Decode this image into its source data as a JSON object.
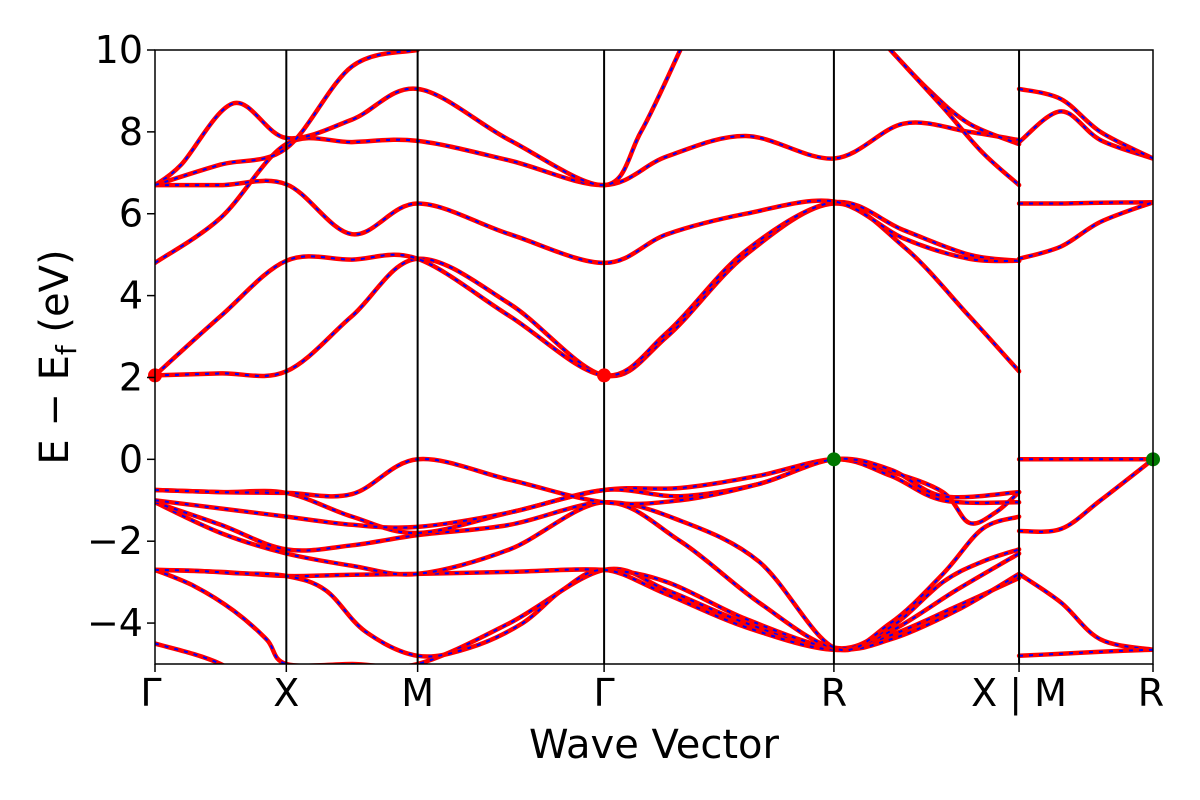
{
  "chart_data": {
    "type": "line",
    "title": "",
    "xlabel": "Wave Vector",
    "ylabel": "E − E",
    "ylabel_subscript": "f",
    "ylabel_unit": " (eV)",
    "ylim": [
      -5,
      10
    ],
    "yticks": [
      10,
      8,
      6,
      4,
      2,
      0,
      -2,
      -4
    ],
    "ytick_labels": [
      "10",
      "8",
      "6",
      "4",
      "2",
      "0",
      "−2",
      "−4"
    ],
    "kpath_positions": [
      0,
      1,
      2,
      3.42,
      5.17,
      6.58,
      7.6
    ],
    "kpath_labels": [
      "Γ",
      "X",
      "M",
      "Γ",
      "R",
      "X | M",
      "R"
    ],
    "colors": {
      "band": "#ff0000",
      "band_dash": "#0000ff",
      "cbm": "#ff0000",
      "vbm": "#007700"
    },
    "markers": [
      {
        "name": "cbm-marker-gamma-left",
        "x": 0,
        "y": 2.05,
        "color": "#ff0000"
      },
      {
        "name": "cbm-marker-gamma",
        "x": 3.42,
        "y": 2.05,
        "color": "#ff0000"
      },
      {
        "name": "vbm-marker-r",
        "x": 5.17,
        "y": 0.0,
        "color": "#007700"
      },
      {
        "name": "vbm-marker-r-end",
        "x": 7.6,
        "y": 0.0,
        "color": "#007700"
      }
    ],
    "bands": [
      {
        "x": [
          0,
          0.5,
          1,
          1.5,
          2,
          2.7,
          3.42
        ],
        "y": [
          -4.5,
          -5.0,
          -6,
          -5.8,
          -5.2,
          -5.5,
          -5.5
        ]
      },
      {
        "x": [
          0,
          0.3,
          0.6,
          0.85,
          1,
          1.5,
          2,
          2.7,
          3.42,
          3.9,
          4.5,
          5.17,
          5.6,
          6.1,
          6.58
        ],
        "y": [
          -2.7,
          -3.1,
          -3.7,
          -4.4,
          -5.0,
          -5.0,
          -5.0,
          -4.0,
          -2.7,
          -3.2,
          -4.0,
          -4.65,
          -4.3,
          -3.6,
          -2.9
        ]
      },
      {
        "x": [
          0,
          0.5,
          1,
          1.5,
          2,
          2.7,
          3.42,
          3.9,
          4.5,
          5.17,
          5.6,
          6.1,
          6.58
        ],
        "y": [
          -2.7,
          -2.75,
          -2.85,
          -2.82,
          -2.8,
          -2.75,
          -2.7,
          -3.0,
          -3.9,
          -4.62,
          -4.4,
          -3.7,
          -2.8
        ]
      },
      {
        "x": [
          0,
          0.3,
          0.6,
          1,
          1.3,
          1.6,
          2,
          2.4,
          2.8,
          3.1,
          3.42,
          3.9,
          4.5,
          5.17,
          5.6,
          6.1,
          6.58
        ],
        "y": [
          -2.7,
          -2.72,
          -2.78,
          -2.85,
          -3.2,
          -4.2,
          -4.8,
          -4.6,
          -4.0,
          -3.2,
          -2.7,
          -3.3,
          -4.1,
          -4.65,
          -4.2,
          -3.2,
          -2.3
        ]
      },
      {
        "x": [
          0,
          0.5,
          1,
          1.5,
          2,
          2.7,
          3.42,
          4.0,
          4.6,
          5.17,
          5.6,
          6.0,
          6.3,
          6.58
        ],
        "y": [
          -1.05,
          -1.8,
          -2.3,
          -2.6,
          -2.8,
          -2.2,
          -1.05,
          -2.0,
          -3.5,
          -4.6,
          -4.1,
          -3.0,
          -2.5,
          -2.2
        ]
      },
      {
        "x": [
          0,
          0.5,
          1,
          1.5,
          2,
          2.7,
          3.42,
          4.0,
          4.6,
          5.17,
          5.6,
          6.0,
          6.3,
          6.58
        ],
        "y": [
          -1.05,
          -1.6,
          -2.2,
          -2.1,
          -1.85,
          -1.6,
          -1.05,
          -1.5,
          -2.5,
          -4.6,
          -4.0,
          -2.8,
          -1.7,
          -1.4
        ]
      },
      {
        "x": [
          0,
          0.5,
          1,
          1.5,
          2,
          2.7,
          3.42,
          4.0,
          4.6,
          5.17,
          5.6,
          6.0,
          6.2,
          6.4,
          6.58
        ],
        "y": [
          -0.75,
          -0.8,
          -0.82,
          -1.4,
          -1.8,
          -1.3,
          -0.75,
          -0.7,
          -0.4,
          0.0,
          -0.3,
          -0.8,
          -1.55,
          -1.3,
          -0.8
        ]
      },
      {
        "x": [
          0,
          0.5,
          1,
          1.5,
          2,
          2.7,
          3.42,
          4.0,
          4.6,
          5.17,
          5.6,
          6.0,
          6.58
        ],
        "y": [
          -1.0,
          -1.2,
          -1.4,
          -1.6,
          -1.65,
          -1.3,
          -0.75,
          -0.9,
          -0.6,
          0.0,
          -0.4,
          -1.0,
          -1.05
        ]
      },
      {
        "x": [
          0,
          0.5,
          1,
          1.5,
          2,
          2.7,
          3.42,
          4.0,
          4.6,
          5.17,
          5.6,
          6.0,
          6.58
        ],
        "y": [
          -0.75,
          -0.8,
          -0.82,
          -0.85,
          0.0,
          -0.5,
          -1.05,
          -1.0,
          -0.6,
          0.0,
          -0.25,
          -0.9,
          -0.8
        ]
      },
      {
        "x": [
          0,
          0.5,
          1,
          1.5,
          2,
          2.7,
          3.42,
          3.9,
          4.5,
          5.17,
          5.7,
          6.2,
          6.58
        ],
        "y": [
          2.05,
          2.1,
          2.15,
          3.5,
          4.9,
          3.8,
          2.05,
          3.0,
          5.0,
          6.25,
          5.2,
          3.5,
          2.15
        ]
      },
      {
        "x": [
          0,
          0.5,
          1,
          1.5,
          2,
          2.7,
          3.42,
          3.9,
          4.5,
          5.17,
          5.7,
          6.2,
          6.58
        ],
        "y": [
          2.05,
          3.5,
          4.85,
          4.88,
          4.9,
          3.5,
          2.05,
          3.1,
          5.1,
          6.28,
          5.6,
          5.0,
          4.85
        ]
      },
      {
        "x": [
          0,
          0.5,
          1,
          1.5,
          2,
          2.7,
          3.42,
          3.9,
          4.5,
          5.17,
          5.7,
          6.2,
          6.58
        ],
        "y": [
          4.8,
          5.9,
          7.7,
          7.75,
          7.78,
          7.3,
          6.7,
          7.4,
          7.9,
          7.35,
          8.2,
          8.0,
          7.8
        ]
      },
      {
        "x": [
          0,
          0.5,
          1,
          1.5,
          2,
          2.7,
          3.42,
          3.9,
          4.5,
          5.17,
          5.7,
          6.2,
          6.58
        ],
        "y": [
          6.7,
          6.7,
          6.72,
          5.5,
          6.25,
          5.5,
          4.8,
          5.5,
          6.0,
          6.3,
          5.4,
          4.9,
          4.85
        ]
      },
      {
        "x": [
          0,
          0.2,
          0.6,
          1,
          1.5,
          2,
          2.7,
          3.42,
          3.7,
          4.0
        ],
        "y": [
          6.7,
          7.2,
          8.7,
          7.85,
          8.3,
          9.05,
          7.8,
          6.7,
          8.0,
          10.0
        ]
      },
      {
        "x": [
          0,
          0.5,
          1,
          1.5,
          2
        ],
        "y": [
          6.7,
          7.2,
          7.6,
          9.6,
          10.0
        ]
      },
      {
        "x": [
          5.6,
          5.9,
          6.2,
          6.58
        ],
        "y": [
          10.0,
          9.0,
          8.2,
          7.7
        ]
      },
      {
        "x": [
          5.6,
          6.0,
          6.3,
          6.58
        ],
        "y": [
          10.0,
          8.6,
          7.5,
          6.7
        ]
      },
      {
        "x": [
          6.58,
          6.9,
          7.2,
          7.6
        ],
        "y": [
          0.0,
          0.0,
          0.0,
          0.0
        ]
      },
      {
        "x": [
          6.58,
          6.9,
          7.2,
          7.6
        ],
        "y": [
          -1.75,
          -1.7,
          -1.0,
          0.0
        ]
      },
      {
        "x": [
          6.58,
          6.9,
          7.2,
          7.6
        ],
        "y": [
          -2.8,
          -3.5,
          -4.4,
          -4.65
        ]
      },
      {
        "x": [
          6.58,
          6.9,
          7.2,
          7.6
        ],
        "y": [
          -4.8,
          -4.75,
          -4.7,
          -4.65
        ]
      },
      {
        "x": [
          6.58,
          6.9,
          7.2,
          7.6
        ],
        "y": [
          6.25,
          6.25,
          6.27,
          6.28
        ]
      },
      {
        "x": [
          6.58,
          6.9,
          7.2,
          7.6
        ],
        "y": [
          4.9,
          5.2,
          5.8,
          6.28
        ]
      },
      {
        "x": [
          6.58,
          6.9,
          7.2,
          7.6
        ],
        "y": [
          7.75,
          8.5,
          7.8,
          7.35
        ]
      },
      {
        "x": [
          6.58,
          6.9,
          7.2,
          7.6
        ],
        "y": [
          9.05,
          8.8,
          8.0,
          7.35
        ]
      }
    ]
  }
}
